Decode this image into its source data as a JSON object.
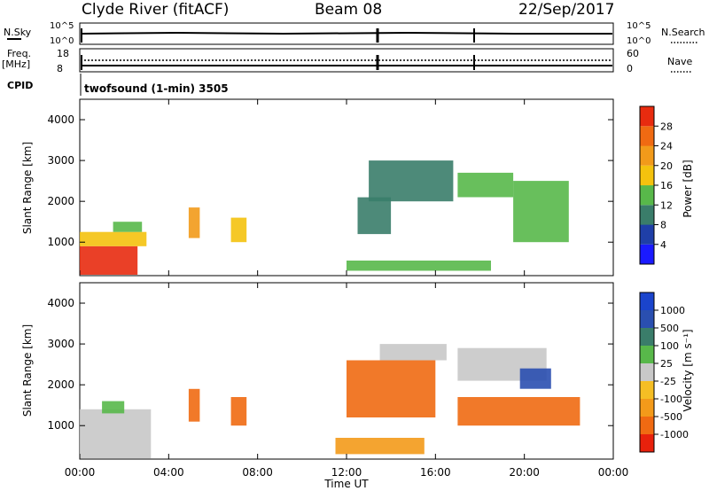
{
  "header": {
    "station": "Clyde River (fitACF)",
    "beam": "Beam 08",
    "date": "22/Sep/2017"
  },
  "status_panels": {
    "nsky_label": "N.Sky",
    "nsearch_label": "N.Search",
    "power_ticks_left": [
      "10^5",
      "10^0"
    ],
    "power_ticks_right": [
      "10^5",
      "10^0"
    ],
    "freq_label_1": "Freq.",
    "freq_label_2": "[MHz]",
    "freq_ticks_left": [
      "18",
      "8"
    ],
    "nave_ticks_right": [
      "60",
      "0"
    ],
    "nave_label": "Nave",
    "cpid_label": "CPID",
    "cpid_text": "twofsound (1-min) 3505"
  },
  "x_axis": {
    "label": "Time UT",
    "ticks": [
      "00:00",
      "04:00",
      "08:00",
      "12:00",
      "16:00",
      "20:00",
      "00:00"
    ]
  },
  "y_axis": {
    "label": "Slant Range [km]",
    "ticks": [
      "1000",
      "2000",
      "3000",
      "4000"
    ]
  },
  "colors": {
    "power_scale": [
      "#1a1aff",
      "#1f3fa8",
      "#3a7d6a",
      "#58b84a",
      "#f4c20e",
      "#f29a1a",
      "#f06a12",
      "#e82b0f"
    ],
    "velocity_scale": [
      "#e8210c",
      "#f06a12",
      "#f39a1a",
      "#f5be24",
      "#c8c8c8",
      "#58b84a",
      "#3a7d6a",
      "#2a4fb0",
      "#1a44cc"
    ]
  },
  "power_colorbar": {
    "label": "Power [dB]",
    "ticks": [
      "4",
      "8",
      "12",
      "16",
      "20",
      "24",
      "28"
    ]
  },
  "velocity_colorbar": {
    "label": "Velocity [m s⁻¹]",
    "ticks": [
      "-1000",
      "-500",
      "-100",
      "-25",
      "25",
      "100",
      "500",
      "1000"
    ]
  },
  "chart_data": [
    {
      "type": "heatmap",
      "title": "",
      "xlabel": "Time UT",
      "ylabel": "Slant Range [km]",
      "xlim": [
        0,
        24
      ],
      "ylim": [
        180,
        4500
      ],
      "colorbar": "Power [dB]",
      "regions": [
        {
          "t0": 0.0,
          "t1": 2.6,
          "r0": 200,
          "r1": 900,
          "value": 28
        },
        {
          "t0": 0.0,
          "t1": 3.0,
          "r0": 900,
          "r1": 1250,
          "value": 16
        },
        {
          "t0": 1.5,
          "t1": 2.8,
          "r0": 1250,
          "r1": 1500,
          "value": 12
        },
        {
          "t0": 4.9,
          "t1": 5.4,
          "r0": 1100,
          "r1": 1850,
          "value": 20
        },
        {
          "t0": 6.8,
          "t1": 7.5,
          "r0": 1000,
          "r1": 1600,
          "value": 16
        },
        {
          "t0": 12.0,
          "t1": 18.5,
          "r0": 300,
          "r1": 550,
          "value": 12
        },
        {
          "t0": 12.5,
          "t1": 14.0,
          "r0": 1200,
          "r1": 2100,
          "value": 8
        },
        {
          "t0": 13.0,
          "t1": 16.8,
          "r0": 2000,
          "r1": 3000,
          "value": 8
        },
        {
          "t0": 17.0,
          "t1": 19.5,
          "r0": 2100,
          "r1": 2700,
          "value": 12
        },
        {
          "t0": 19.5,
          "t1": 22.0,
          "r0": 1000,
          "r1": 2500,
          "value": 12
        }
      ]
    },
    {
      "type": "heatmap",
      "title": "",
      "xlabel": "Time UT",
      "ylabel": "Slant Range [km]",
      "xlim": [
        0,
        24
      ],
      "ylim": [
        180,
        4500
      ],
      "colorbar": "Velocity [m s⁻¹]",
      "regions": [
        {
          "t0": 0.0,
          "t1": 3.2,
          "r0": 200,
          "r1": 1400,
          "value": 0
        },
        {
          "t0": 1.0,
          "t1": 2.0,
          "r0": 1300,
          "r1": 1600,
          "value": 100
        },
        {
          "t0": 4.9,
          "t1": 5.4,
          "r0": 1100,
          "r1": 1900,
          "value": -500
        },
        {
          "t0": 6.8,
          "t1": 7.5,
          "r0": 1000,
          "r1": 1700,
          "value": -500
        },
        {
          "t0": 11.5,
          "t1": 15.5,
          "r0": 300,
          "r1": 700,
          "value": -100
        },
        {
          "t0": 12.0,
          "t1": 16.0,
          "r0": 1200,
          "r1": 2600,
          "value": -500
        },
        {
          "t0": 13.5,
          "t1": 16.5,
          "r0": 2600,
          "r1": 3000,
          "value": 0
        },
        {
          "t0": 17.0,
          "t1": 21.0,
          "r0": 2100,
          "r1": 2900,
          "value": 0
        },
        {
          "t0": 19.8,
          "t1": 21.2,
          "r0": 1900,
          "r1": 2400,
          "value": 1000
        },
        {
          "t0": 17.0,
          "t1": 22.5,
          "r0": 1000,
          "r1": 1700,
          "value": -500
        }
      ]
    }
  ]
}
